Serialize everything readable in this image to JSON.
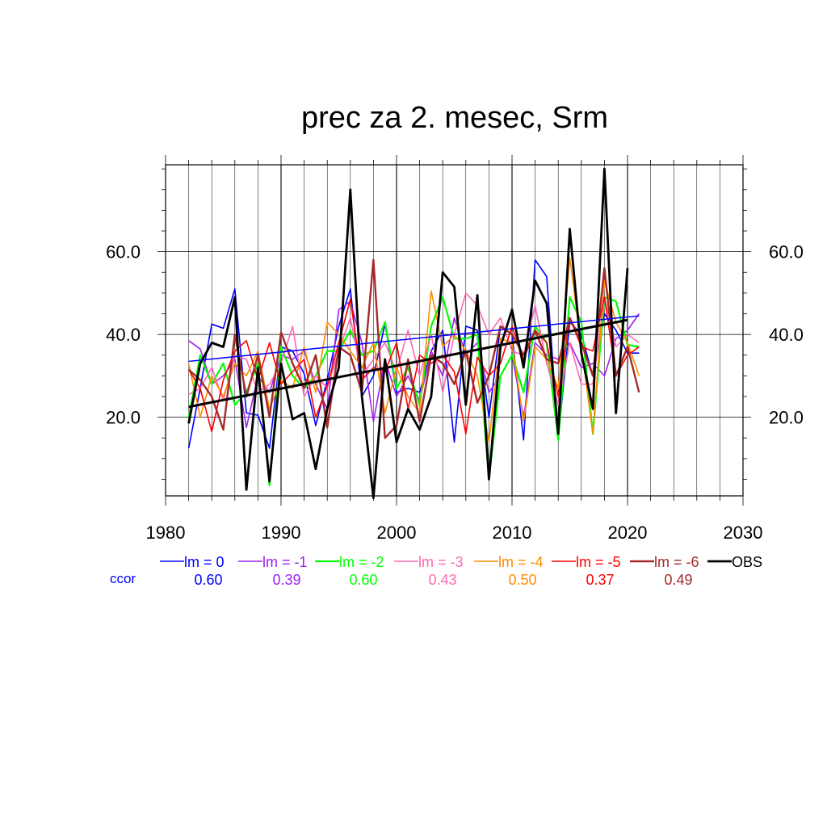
{
  "chart_data": {
    "type": "line",
    "title": "prec za 2. mesec, Srm",
    "xlabel": "",
    "ylabel": "",
    "xlim": [
      1980,
      2030
    ],
    "ylim": [
      1,
      81
    ],
    "x_ticks": [
      1980,
      1990,
      2000,
      2010,
      2020,
      2030
    ],
    "x_tick_labels": [
      "1980",
      "1990",
      "2000",
      "2010",
      "2020",
      "2030"
    ],
    "y_ticks": [
      20,
      40,
      60
    ],
    "y_tick_labels": [
      "20.0",
      "40.0",
      "60.0"
    ],
    "grid": true,
    "legend_position": "bottom",
    "ccor_label": "ccor",
    "years": [
      1982,
      1983,
      1984,
      1985,
      1986,
      1987,
      1988,
      1989,
      1990,
      1991,
      1992,
      1993,
      1994,
      1995,
      1996,
      1997,
      1998,
      1999,
      2000,
      2001,
      2002,
      2003,
      2004,
      2005,
      2006,
      2007,
      2008,
      2009,
      2010,
      2011,
      2012,
      2013,
      2014,
      2015,
      2016,
      2017,
      2018,
      2019,
      2020,
      2021
    ],
    "series": [
      {
        "name": "lm = 0",
        "color": "#0000ff",
        "width": 1.6,
        "ccor": "0.60",
        "values": [
          12.5,
          27,
          42.5,
          41.5,
          51,
          21,
          20.5,
          12.5,
          37,
          36,
          30.5,
          18,
          29,
          42,
          51,
          25,
          30,
          42.5,
          26,
          27,
          26,
          36,
          41,
          14,
          42,
          41,
          20,
          42,
          40,
          14.5,
          58,
          54,
          15,
          43,
          40,
          30,
          45,
          41,
          35.5,
          35.5
        ],
        "trend": [
          33.5,
          44.5
        ]
      },
      {
        "name": "lm = -1",
        "color": "#a020f0",
        "width": 1.6,
        "ccor": "0.39",
        "values": [
          38.5,
          36.5,
          28,
          30,
          34,
          17.5,
          30,
          26,
          35,
          34,
          36,
          28,
          22,
          46,
          48,
          38,
          19,
          34,
          25,
          30,
          24,
          36,
          30,
          44,
          35,
          38,
          26,
          30,
          35,
          20,
          38,
          35,
          34,
          38,
          32,
          33,
          30,
          39,
          41,
          45
        ]
      },
      {
        "name": "lm = -2",
        "color": "#00ff00",
        "width": 2.2,
        "ccor": "0.60",
        "values": [
          20,
          35,
          28,
          33,
          23,
          26,
          33,
          3.5,
          37,
          30,
          27,
          30,
          36,
          36,
          41,
          35,
          36,
          43,
          27,
          32,
          23,
          42,
          49,
          39,
          39,
          40,
          5,
          30,
          35,
          26,
          42,
          38,
          14.5,
          49,
          43,
          16,
          49,
          48,
          37.5,
          37
        ]
      },
      {
        "name": "lm = -3",
        "color": "#ff69b4",
        "width": 1.6,
        "ccor": "0.43",
        "values": [
          25.5,
          27,
          32,
          24,
          35,
          34,
          26,
          28,
          33,
          42,
          25,
          30,
          27,
          36,
          44,
          30,
          34,
          38,
          31,
          41,
          30,
          40,
          26,
          40,
          50,
          47,
          40,
          44,
          36,
          35,
          47,
          33,
          23,
          38,
          28,
          28,
          49,
          37,
          40,
          38
        ]
      },
      {
        "name": "lm = -4",
        "color": "#ff8c00",
        "width": 1.6,
        "ccor": "0.50",
        "values": [
          33,
          20,
          30,
          25,
          33,
          30,
          36,
          22,
          29,
          27,
          37,
          26,
          43,
          40,
          36,
          32,
          38,
          21,
          32,
          25,
          21,
          50.5,
          37,
          40,
          36,
          30,
          14,
          39,
          38,
          19,
          37,
          34,
          27,
          58.5,
          37,
          16,
          53,
          43,
          38,
          30
        ]
      },
      {
        "name": "lm = -5",
        "color": "#ff0000",
        "width": 1.6,
        "ccor": "0.37",
        "values": [
          31.5,
          27,
          16.5,
          29,
          36,
          38.5,
          29,
          38,
          28,
          31,
          34,
          20,
          27.5,
          38,
          48.5,
          29,
          32,
          31,
          38,
          22,
          35,
          33,
          35,
          31,
          16,
          34.5,
          30,
          33,
          42,
          34,
          41,
          38,
          25,
          44,
          37,
          36,
          49,
          30,
          35,
          37
        ]
      },
      {
        "name": "lm = -6",
        "color": "#a52a2a",
        "width": 2.4,
        "ccor": "0.49",
        "values": [
          31.5,
          29,
          25,
          17,
          40,
          25,
          35,
          20,
          40.5,
          33,
          27,
          35,
          17.5,
          37,
          35,
          26,
          58,
          15,
          18,
          34,
          19,
          35,
          33,
          28,
          36,
          23.5,
          30,
          42,
          40,
          35,
          41,
          34,
          33,
          44,
          38,
          30,
          56,
          30,
          37,
          26
        ]
      },
      {
        "name": "OBS",
        "color": "#000000",
        "width": 2.8,
        "ccor": "",
        "values": [
          18.5,
          33,
          38,
          37,
          49,
          2.5,
          32,
          4.5,
          33,
          19.5,
          21,
          7.5,
          22,
          32,
          75,
          25,
          0.5,
          34,
          14,
          22,
          17,
          25,
          55,
          51.5,
          23,
          49.5,
          5,
          37,
          46,
          32,
          53,
          47.5,
          16,
          65.5,
          35.5,
          22,
          80,
          21,
          56
        ],
        "trend": [
          22.5,
          43.5
        ]
      }
    ]
  }
}
